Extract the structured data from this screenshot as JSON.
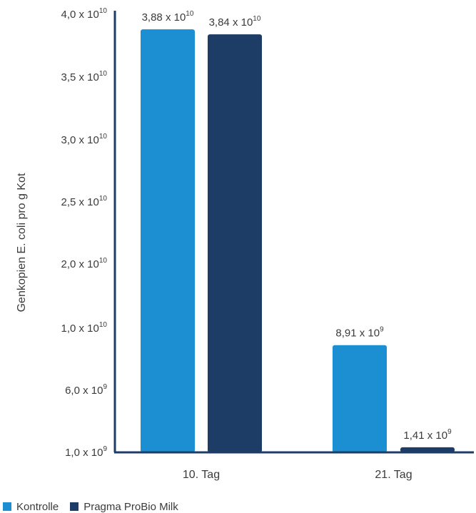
{
  "colors": {
    "kontrolle": "#1b8fd1",
    "probio": "#1e3d66",
    "axis": "#1e3d66",
    "text": "#3b3b3b"
  },
  "chart_data": {
    "type": "bar",
    "ylabel": "Genkopien E. coli pro g Kot",
    "xlabel": "",
    "categories": [
      "10. Tag",
      "21. Tag"
    ],
    "y_ticks": [
      {
        "mantissa": "1,0",
        "exp": "9"
      },
      {
        "mantissa": "6,0",
        "exp": "9"
      },
      {
        "mantissa": "1,0",
        "exp": "10"
      },
      {
        "mantissa": "2,0",
        "exp": "10"
      },
      {
        "mantissa": "2,5",
        "exp": "10"
      },
      {
        "mantissa": "3,0",
        "exp": "10"
      },
      {
        "mantissa": "3,5",
        "exp": "10"
      },
      {
        "mantissa": "4,0",
        "exp": "10"
      }
    ],
    "series": [
      {
        "name": "Kontrolle",
        "values": [
          38800000000.0,
          8910000000.0
        ],
        "labels": [
          {
            "mantissa": "3,88",
            "exp": "10"
          },
          {
            "mantissa": "8,91",
            "exp": "9"
          }
        ]
      },
      {
        "name": "Pragma ProBio Milk",
        "values": [
          38400000000.0,
          1410000000.0
        ],
        "labels": [
          {
            "mantissa": "3,84",
            "exp": "10"
          },
          {
            "mantissa": "1,41",
            "exp": "9"
          }
        ]
      }
    ],
    "legend": "bottom-left"
  }
}
